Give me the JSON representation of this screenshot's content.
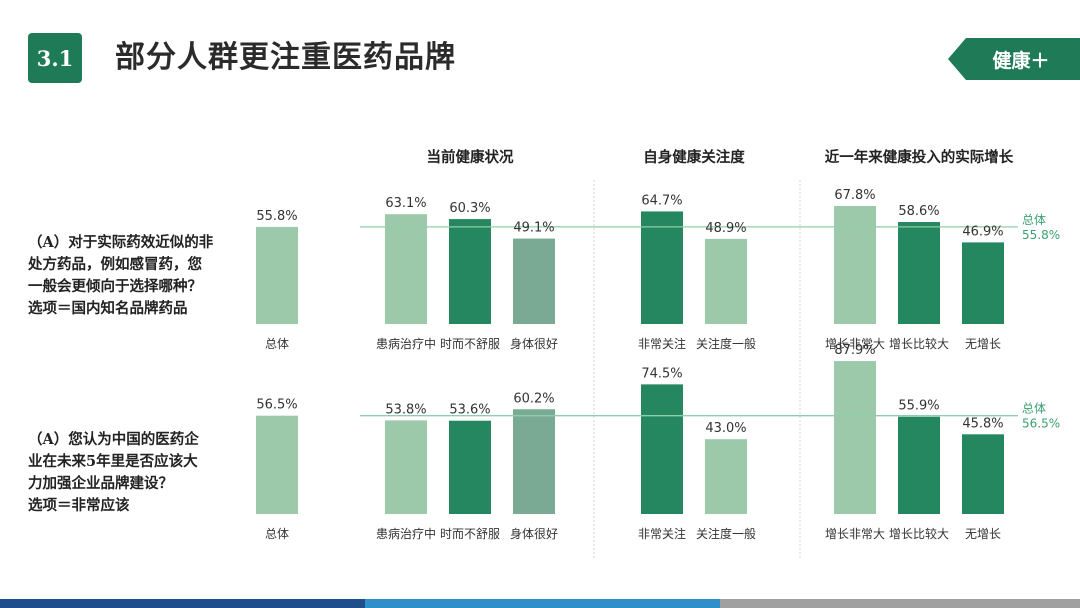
{
  "header": {
    "section_number": "3.1",
    "title": "部分人群更注重医药品牌",
    "tag": "健康＋"
  },
  "questions": [
    {
      "lines": [
        "（A）对于实际药效近似的非",
        "处方药品，例如感冒药，您",
        "一般会更倾向于选择哪种？",
        "选项＝国内知名品牌药品"
      ]
    },
    {
      "lines": [
        "（A）您认为中国的医药企",
        "业在未来5年里是否应该大",
        "力加强企业品牌建设？",
        "选项＝非常应该"
      ]
    }
  ],
  "colors": {
    "brand": "#1f7a57",
    "dark_green": "#25875f",
    "light_green": "#9dc9ab",
    "muted_green": "#7aaa93",
    "reference_line": "#8fceaa",
    "divider": "#d5d5d5",
    "footer_blue": "#1f4e8c",
    "footer_cyan": "#2e8fc9",
    "footer_gray": "#a0a0a0"
  },
  "chart_data": {
    "type": "bar",
    "unit": "%",
    "groups": [
      {
        "header": "",
        "categories": [
          "总体"
        ],
        "colors": [
          "light_green"
        ]
      },
      {
        "header": "当前健康状况",
        "categories": [
          "患病治疗中",
          "时而不舒服",
          "身体很好"
        ],
        "colors": [
          "light_green",
          "dark_green",
          "muted_green"
        ]
      },
      {
        "header": "自身健康关注度",
        "categories": [
          "非常关注",
          "关注度一般"
        ],
        "colors": [
          "dark_green",
          "light_green"
        ]
      },
      {
        "header": "近一年来健康投入的实际增长",
        "categories": [
          "增长非常大",
          "增长比较大",
          "无增长"
        ],
        "colors": [
          "light_green",
          "dark_green",
          "dark_green"
        ]
      }
    ],
    "rows": [
      {
        "values": [
          [
            55.8
          ],
          [
            63.1,
            60.3,
            49.1
          ],
          [
            64.7,
            48.9
          ],
          [
            67.8,
            58.6,
            46.9
          ]
        ],
        "labels": [
          [
            "55.8%"
          ],
          [
            "63.1%",
            "60.3%",
            "49.1%"
          ],
          [
            "64.7%",
            "48.9%"
          ],
          [
            "67.8%",
            "58.6%",
            "46.9%"
          ]
        ],
        "reference": {
          "value": 55.8,
          "label": "总体",
          "value_label": "55.8%"
        }
      },
      {
        "values": [
          [
            56.5
          ],
          [
            53.8,
            53.6,
            60.2
          ],
          [
            74.5,
            43.0
          ],
          [
            87.9,
            55.9,
            45.8
          ]
        ],
        "labels": [
          [
            "56.5%"
          ],
          [
            "53.8%",
            "53.6%",
            "60.2%"
          ],
          [
            "74.5%",
            "43.0%"
          ],
          [
            "87.9%",
            "55.9%",
            "45.8%"
          ]
        ],
        "reference": {
          "value": 56.5,
          "label": "总体",
          "value_label": "56.5%"
        }
      }
    ]
  }
}
